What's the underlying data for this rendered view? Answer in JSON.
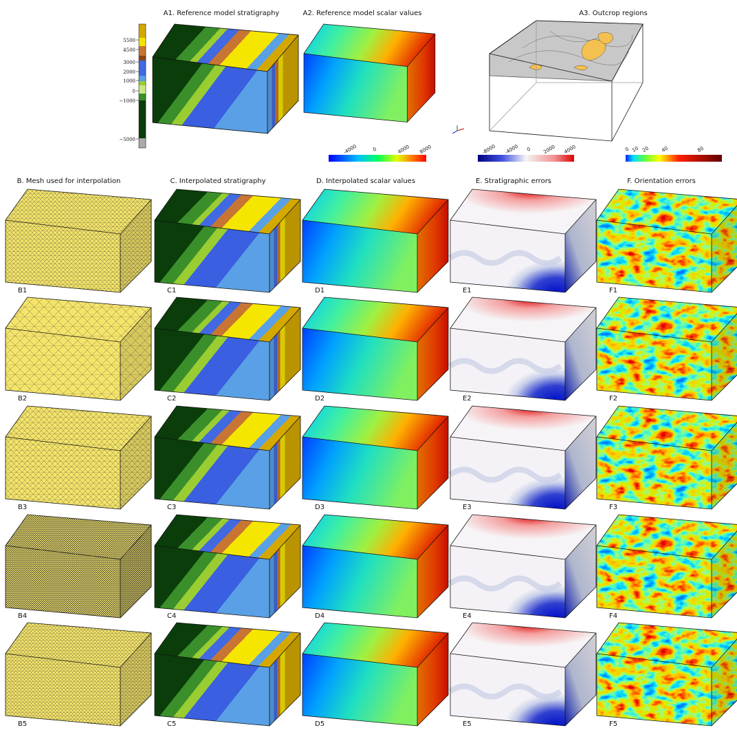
{
  "top": {
    "strat_ticks": [
      "5500",
      "4500",
      "3000",
      "2000",
      "1000",
      "0",
      "−1000",
      "−5000"
    ],
    "titles": [
      "A1. Reference model stratigraphy",
      "A2. Reference model scalar values",
      "A3. Outcrop regions"
    ]
  },
  "colorbars": [
    {
      "ticks": [
        "-4000",
        "0",
        "4000",
        "8000"
      ]
    },
    {
      "ticks": [
        "-8000",
        "-4000",
        "0",
        "2000",
        "4000"
      ]
    },
    {
      "ticks": [
        "0",
        "10",
        "20",
        "40",
        "80"
      ]
    }
  ],
  "columns": [
    {
      "title": "B. Mesh used for interpolation",
      "labels": [
        "B1",
        "B2",
        "B3",
        "B4",
        "B5"
      ]
    },
    {
      "title": "C. Interpolated stratigraphy",
      "labels": [
        "C1",
        "C2",
        "C3",
        "C4",
        "C5"
      ]
    },
    {
      "title": "D. Interpolated scalar values",
      "labels": [
        "D1",
        "D2",
        "D3",
        "D4",
        "D5"
      ]
    },
    {
      "title": "E. Stratigraphic errors",
      "labels": [
        "E1",
        "E2",
        "E3",
        "E4",
        "E5"
      ]
    },
    {
      "title": "F. Orientation errors",
      "labels": [
        "F1",
        "F2",
        "F3",
        "F4",
        "F5"
      ]
    }
  ]
}
